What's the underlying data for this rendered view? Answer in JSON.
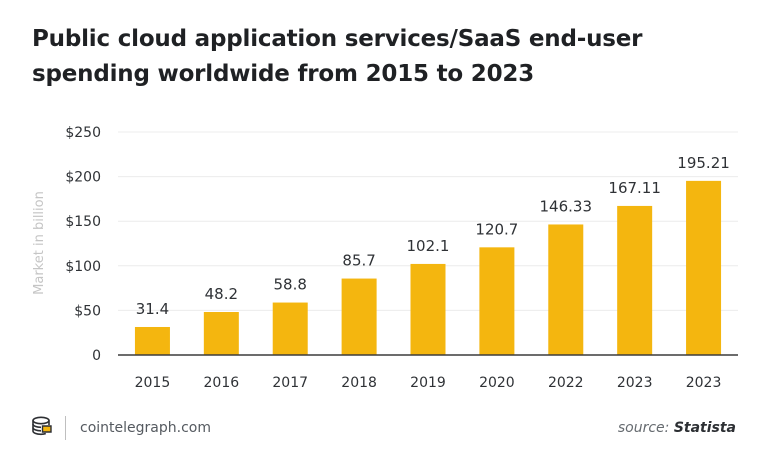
{
  "colors": {
    "bar": "#f4b60f",
    "grid": "#ececec",
    "axis": "#3c3c3c",
    "text": "#2f3236",
    "ylabel": "#c5c5c5"
  },
  "chart_data": {
    "type": "bar",
    "title": "Public cloud application services/SaaS end-user spending worldwide from 2015 to 2023",
    "xlabel": "",
    "ylabel": "Market in billion",
    "categories": [
      "2015",
      "2016",
      "2017",
      "2018",
      "2019",
      "2020",
      "2022",
      "2023",
      "2023"
    ],
    "values": [
      31.4,
      48.2,
      58.8,
      85.7,
      102.1,
      120.7,
      146.33,
      167.11,
      195.21
    ],
    "data_labels": [
      "31.4",
      "48.2",
      "58.8",
      "85.7",
      "102.1",
      "120.7",
      "146.33",
      "167.11",
      "195.21"
    ],
    "ylim": [
      0,
      250
    ],
    "yticks": [
      0,
      50,
      100,
      150,
      200,
      250
    ],
    "ytick_labels": [
      "0",
      "$50",
      "$100",
      "$150",
      "$200",
      "$250"
    ],
    "grid": true,
    "legend": "none"
  },
  "footer": {
    "brand": "cointelegraph.com",
    "source_prefix": "source:",
    "source_name": "Statista"
  }
}
